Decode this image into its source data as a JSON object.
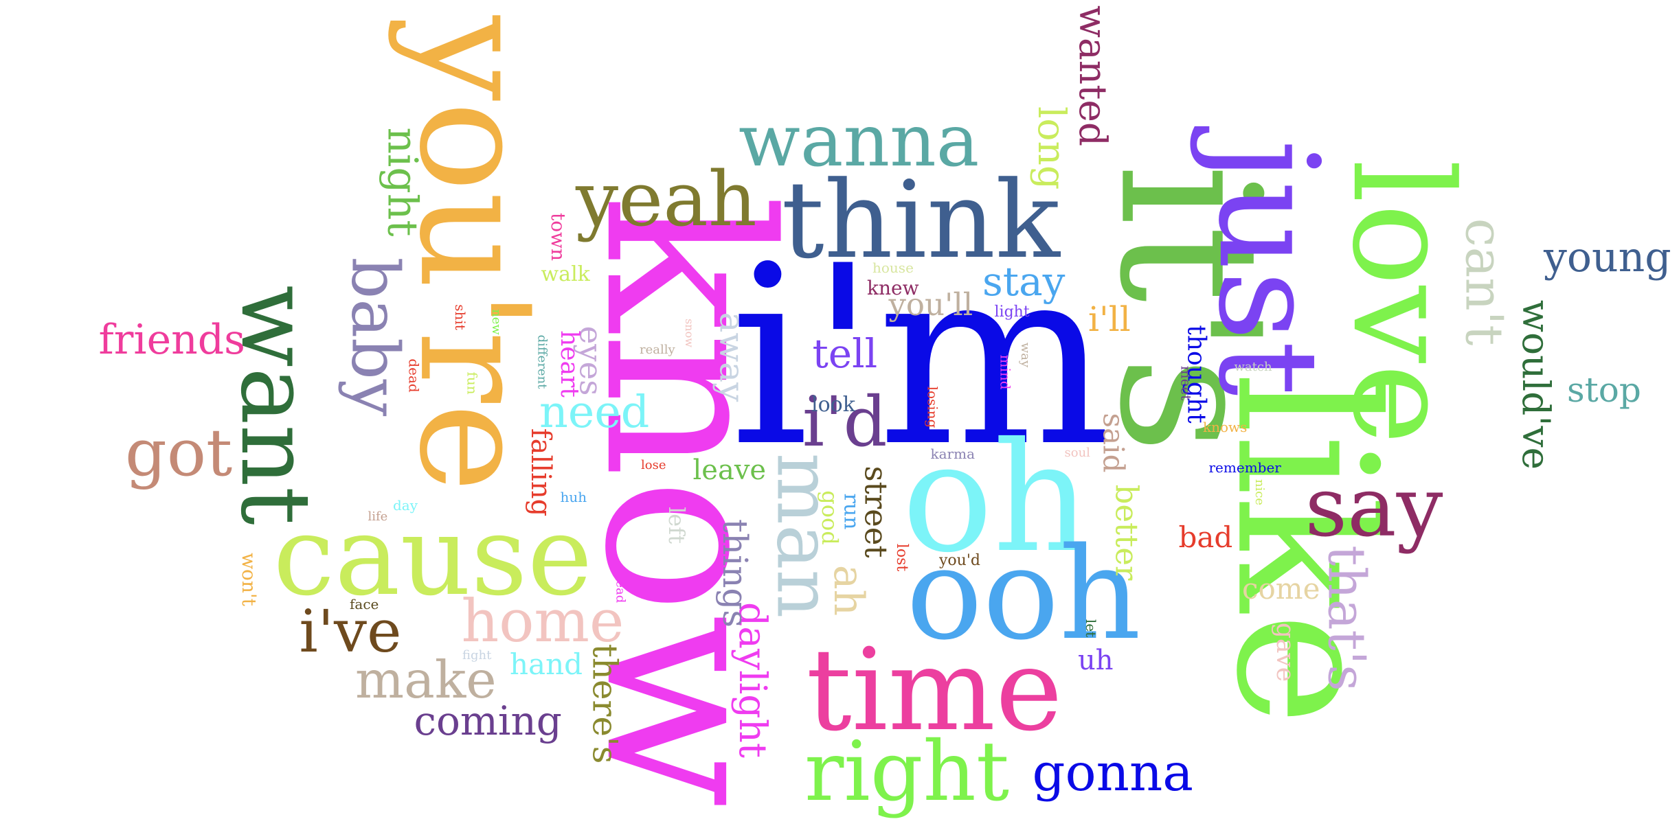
{
  "words": [
    {
      "text": "i'm",
      "color": "#0a0ae6"
    },
    {
      "text": "know",
      "color": "#ef3cf0"
    },
    {
      "text": "it's",
      "color": "#6cc04c"
    },
    {
      "text": "like",
      "color": "#7ef24c"
    },
    {
      "text": "just",
      "color": "#7b43f2"
    },
    {
      "text": "love",
      "color": "#7ef24c"
    },
    {
      "text": "you're",
      "color": "#f2b245"
    },
    {
      "text": "oh",
      "color": "#7cf4f8"
    },
    {
      "text": "ooh",
      "color": "#4aa6ef"
    },
    {
      "text": "time",
      "color": "#ec3f9f"
    },
    {
      "text": "cause",
      "color": "#c9ec5c"
    },
    {
      "text": "want",
      "color": "#2f6e3a"
    },
    {
      "text": "think",
      "color": "#3f5f8f"
    },
    {
      "text": "yeah",
      "color": "#7f7a2f"
    },
    {
      "text": "wanna",
      "color": "#5aa8a4"
    },
    {
      "text": "right",
      "color": "#7ef24c"
    },
    {
      "text": "say",
      "color": "#8e2c64"
    },
    {
      "text": "i'd",
      "color": "#6a3f8f"
    },
    {
      "text": "man",
      "color": "#b9d0d8"
    },
    {
      "text": "gonna",
      "color": "#0a0ae6"
    },
    {
      "text": "baby",
      "color": "#8a82b2"
    },
    {
      "text": "got",
      "color": "#c48a76"
    },
    {
      "text": "i've",
      "color": "#6e4a1e"
    },
    {
      "text": "home",
      "color": "#f2c4c0"
    },
    {
      "text": "make",
      "color": "#bfb09f"
    },
    {
      "text": "that's",
      "color": "#c4a6d8"
    },
    {
      "text": "can't",
      "color": "#c8d4bf"
    },
    {
      "text": "young",
      "color": "#3f5f8f"
    },
    {
      "text": "would've",
      "color": "#2f6e3a"
    },
    {
      "text": "friends",
      "color": "#ef3c9c"
    },
    {
      "text": "night",
      "color": "#6cc04c"
    },
    {
      "text": "wanted",
      "color": "#8e2c64"
    },
    {
      "text": "long",
      "color": "#c9ec5c"
    },
    {
      "text": "coming",
      "color": "#6a3f8f"
    },
    {
      "text": "need",
      "color": "#7cf4f8"
    },
    {
      "text": "daylight",
      "color": "#ef3cf0"
    },
    {
      "text": "things",
      "color": "#8a82b2"
    },
    {
      "text": "stay",
      "color": "#4aa6ef"
    },
    {
      "text": "tell",
      "color": "#7b43f2"
    },
    {
      "text": "there's",
      "color": "#8a8a2f"
    },
    {
      "text": "stop",
      "color": "#5aa8a4"
    },
    {
      "text": "ah",
      "color": "#e6d4a2"
    },
    {
      "text": "away",
      "color": "#c8d4e2"
    },
    {
      "text": "street",
      "color": "#5a4a1e"
    },
    {
      "text": "eyes",
      "color": "#c4a6d8"
    },
    {
      "text": "better",
      "color": "#c9ec5c"
    },
    {
      "text": "you'll",
      "color": "#bfb09f"
    },
    {
      "text": "come",
      "color": "#e6d4a2"
    },
    {
      "text": "said",
      "color": "#c4a090"
    },
    {
      "text": "i'll",
      "color": "#f2b245"
    },
    {
      "text": "bad",
      "color": "#e63c2c"
    },
    {
      "text": "hand",
      "color": "#7cf4f8"
    },
    {
      "text": "leave",
      "color": "#6cc04c"
    },
    {
      "text": "falling",
      "color": "#e63c2c"
    },
    {
      "text": "thought",
      "color": "#0a0ae6"
    },
    {
      "text": "uh",
      "color": "#7b43f2"
    },
    {
      "text": "heart",
      "color": "#ef3cf0"
    },
    {
      "text": "gave",
      "color": "#f2c4c0"
    },
    {
      "text": "good",
      "color": "#c9ec5c"
    },
    {
      "text": "run",
      "color": "#4aa6ef"
    },
    {
      "text": "left",
      "color": "#d0d8d0"
    },
    {
      "text": "look",
      "color": "#3f5f8f"
    },
    {
      "text": "won't",
      "color": "#f2b245"
    },
    {
      "text": "walk",
      "color": "#c9ec5c"
    },
    {
      "text": "knew",
      "color": "#8e2c64"
    },
    {
      "text": "town",
      "color": "#ef3c9c"
    },
    {
      "text": "lost",
      "color": "#e63c2c"
    },
    {
      "text": "you'd",
      "color": "#6e4a1e"
    },
    {
      "text": "face",
      "color": "#5a4a1e"
    },
    {
      "text": "house",
      "color": "#d8e6a0"
    },
    {
      "text": "light",
      "color": "#7b43f2"
    },
    {
      "text": "knows",
      "color": "#f2b245"
    },
    {
      "text": "remember",
      "color": "#0a0ae6"
    },
    {
      "text": "karma",
      "color": "#8a82b2"
    },
    {
      "text": "soul",
      "color": "#f2c4c0"
    },
    {
      "text": "watch",
      "color": "#c8d4bf"
    },
    {
      "text": "meet",
      "color": "#6a3f8f"
    },
    {
      "text": "mind",
      "color": "#ef3cf0"
    },
    {
      "text": "way",
      "color": "#bfb09f"
    },
    {
      "text": "losing",
      "color": "#e63c2c"
    },
    {
      "text": "really",
      "color": "#bfb09f"
    },
    {
      "text": "snow",
      "color": "#f2c4c0"
    },
    {
      "text": "different",
      "color": "#5aa8a4"
    },
    {
      "text": "new",
      "color": "#7ef24c"
    },
    {
      "text": "shit",
      "color": "#e63c2c"
    },
    {
      "text": "dead",
      "color": "#e63c2c"
    },
    {
      "text": "fun",
      "color": "#c9ec5c"
    },
    {
      "text": "lose",
      "color": "#e63c2c"
    },
    {
      "text": "huh",
      "color": "#4aa6ef"
    },
    {
      "text": "day",
      "color": "#7cf4f8"
    },
    {
      "text": "life",
      "color": "#c4a090"
    },
    {
      "text": "head",
      "color": "#ef3cf0"
    },
    {
      "text": "fight",
      "color": "#c8d4e2"
    },
    {
      "text": "let",
      "color": "#2f6e3a"
    },
    {
      "text": "nice",
      "color": "#c9ec5c"
    }
  ]
}
